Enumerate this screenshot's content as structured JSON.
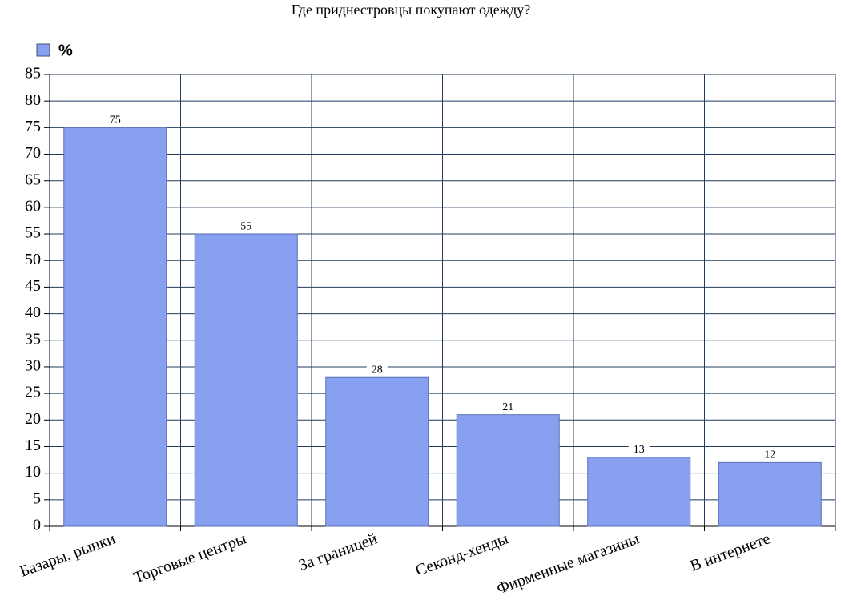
{
  "chart_data": {
    "type": "bar",
    "title": "Где приднестровцы покупают одежду?",
    "categories": [
      "Базары, рынки",
      "Торговые центры",
      "За границей",
      "Секонд-хенды",
      "Фирменные магазины",
      "В интернете"
    ],
    "series": [
      {
        "name": "%",
        "color": "#87a0f0",
        "values": [
          75,
          55,
          28,
          21,
          13,
          12
        ]
      }
    ],
    "ylim": [
      0,
      85
    ],
    "yticks": [
      0,
      5,
      10,
      15,
      20,
      25,
      30,
      35,
      40,
      45,
      50,
      55,
      60,
      65,
      70,
      75,
      80,
      85
    ],
    "grid": true,
    "legend": "top-left"
  }
}
